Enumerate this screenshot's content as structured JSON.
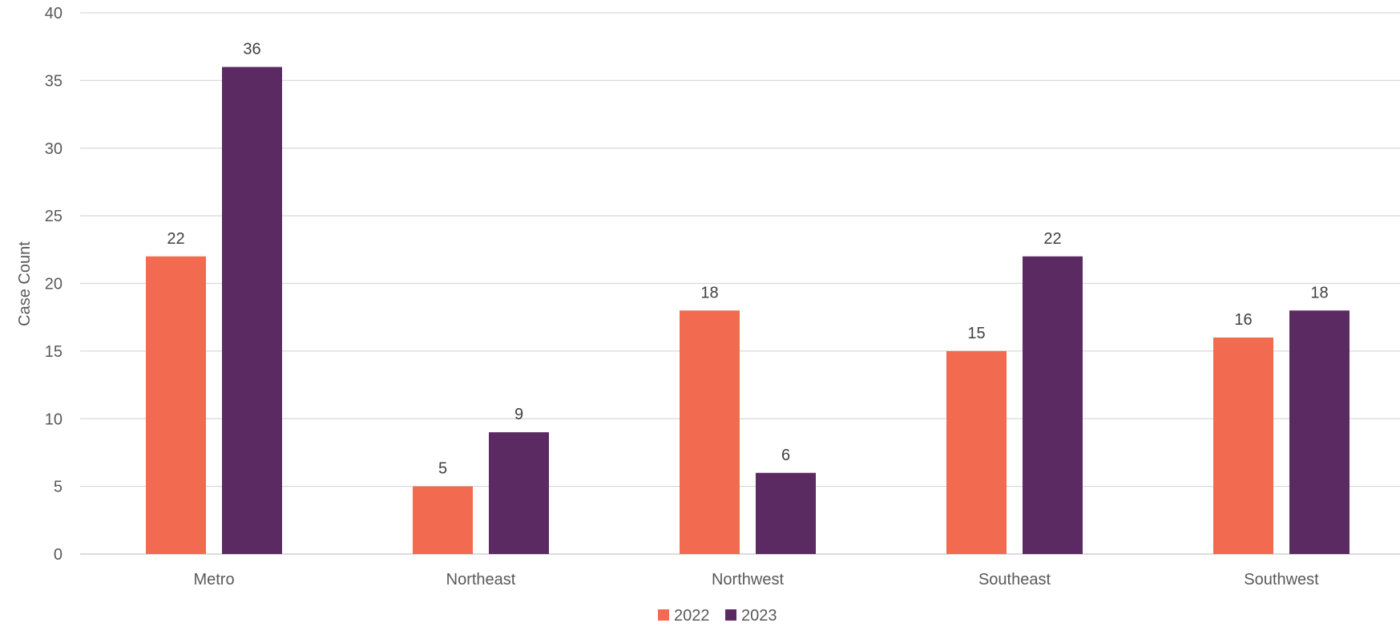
{
  "chart_data": {
    "type": "bar",
    "title": "",
    "xlabel": "",
    "ylabel": "Case Count",
    "categories": [
      "Metro",
      "Northeast",
      "Northwest",
      "Southeast",
      "Southwest"
    ],
    "series": [
      {
        "name": "2022",
        "color": "#F26A4F",
        "values": [
          22,
          5,
          18,
          15,
          16
        ]
      },
      {
        "name": "2023",
        "color": "#5B2A63",
        "values": [
          36,
          9,
          6,
          22,
          18
        ]
      }
    ],
    "ylim": [
      0,
      40
    ],
    "yticks": [
      0,
      5,
      10,
      15,
      20,
      25,
      30,
      35,
      40
    ],
    "grid": true,
    "legend": "bottom",
    "data_labels": true
  }
}
